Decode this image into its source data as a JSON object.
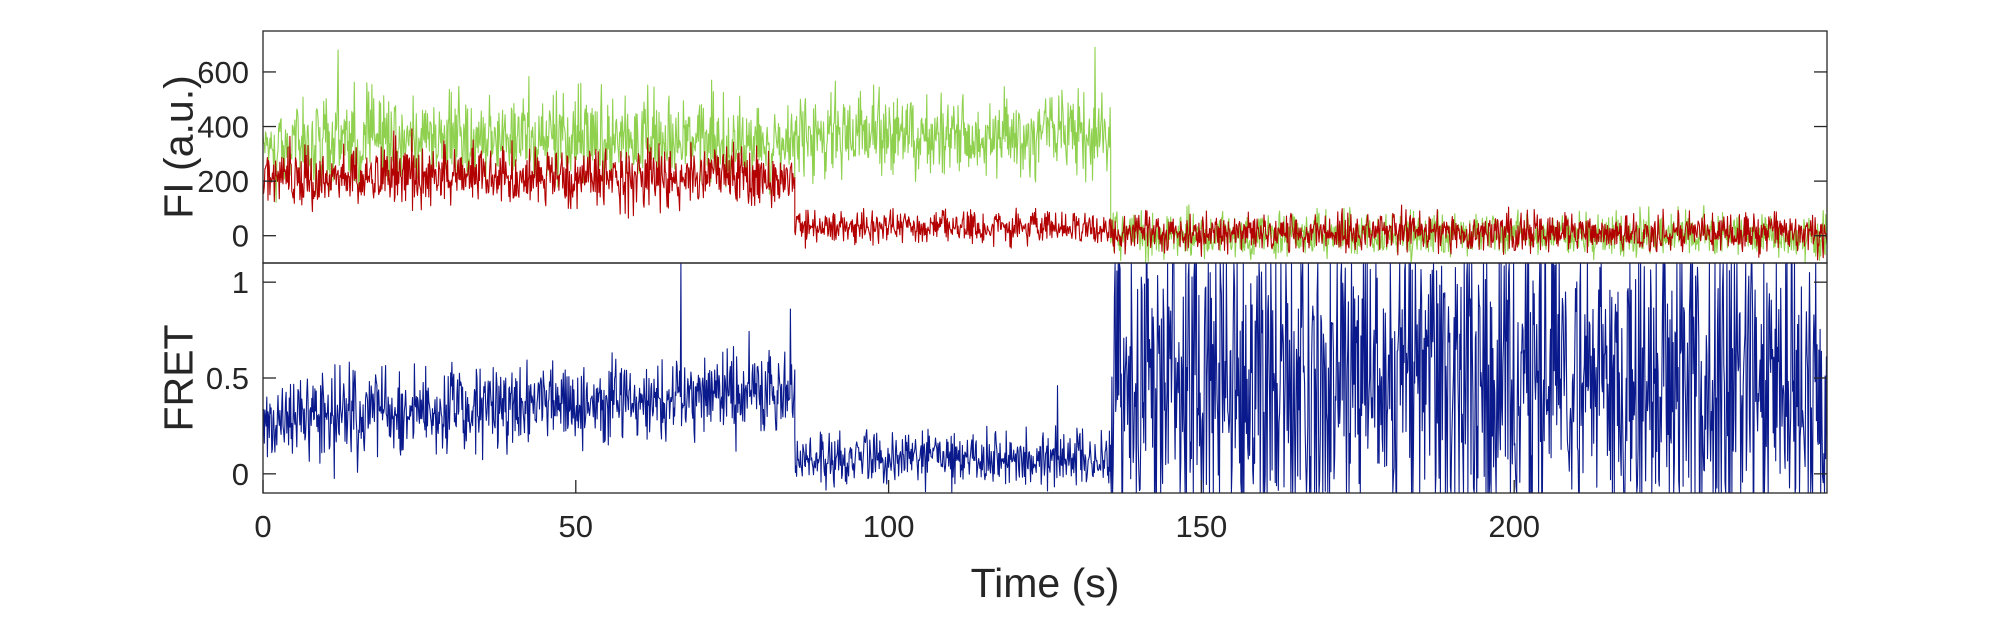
{
  "chart_data": [
    {
      "panel": "top",
      "type": "line",
      "xlabel": "",
      "ylabel": "FI (a.u.)",
      "xlim": [
        0,
        250
      ],
      "ylim": [
        -100,
        750
      ],
      "yticks": [
        0,
        200,
        400,
        600
      ],
      "ytick_labels": [
        "0",
        "200",
        "400",
        "600"
      ],
      "grid": false,
      "series": [
        {
          "color": "#8fd14f",
          "segments": [
            {
              "x": [
                0,
                85
              ],
              "mean": 350,
              "noise": 80,
              "slope": 0
            },
            {
              "x": [
                85,
                135.5
              ],
              "mean": 370,
              "noise": 75,
              "slope": 0
            },
            {
              "x": [
                135.5,
                250
              ],
              "mean": 5,
              "noise": 40,
              "slope": 0
            }
          ],
          "peaks": [
            {
              "x": 12,
              "y": 680
            },
            {
              "x": 133,
              "y": 690
            }
          ]
        },
        {
          "color": "#b30000",
          "segments": [
            {
              "x": [
                0,
                85
              ],
              "mean": 215,
              "noise": 55,
              "slope": 0
            },
            {
              "x": [
                85,
                135.5
              ],
              "mean": 30,
              "noise": 30,
              "slope": 0
            },
            {
              "x": [
                135.5,
                250
              ],
              "mean": 10,
              "noise": 35,
              "slope": 0
            }
          ],
          "peaks": []
        }
      ]
    },
    {
      "panel": "bottom",
      "type": "line",
      "xlabel": "Time (s)",
      "ylabel": "FRET",
      "xlim": [
        0,
        250
      ],
      "ylim": [
        -0.1,
        1.1
      ],
      "xticks": [
        0,
        50,
        100,
        150,
        200
      ],
      "xtick_labels": [
        "0",
        "50",
        "100",
        "150",
        "200"
      ],
      "yticks": [
        0,
        0.5,
        1
      ],
      "ytick_labels": [
        "0",
        "0.5",
        "1"
      ],
      "grid": false,
      "series": [
        {
          "color": "#0a1a8c",
          "segments": [
            {
              "x": [
                0,
                85
              ],
              "mean": 0.36,
              "noise": 0.11,
              "slope": 0.0017
            },
            {
              "x": [
                85,
                135.5
              ],
              "mean": 0.08,
              "noise": 0.07,
              "slope": 0
            },
            {
              "x": [
                135.5,
                250
              ],
              "mean": 0.5,
              "noise": 0.45,
              "slope": 0
            }
          ],
          "peaks": [
            {
              "x": 66.8,
              "y": 1.1
            },
            {
              "x": 84.3,
              "y": 0.86
            },
            {
              "x": 127,
              "y": 0.46
            }
          ]
        }
      ]
    }
  ]
}
